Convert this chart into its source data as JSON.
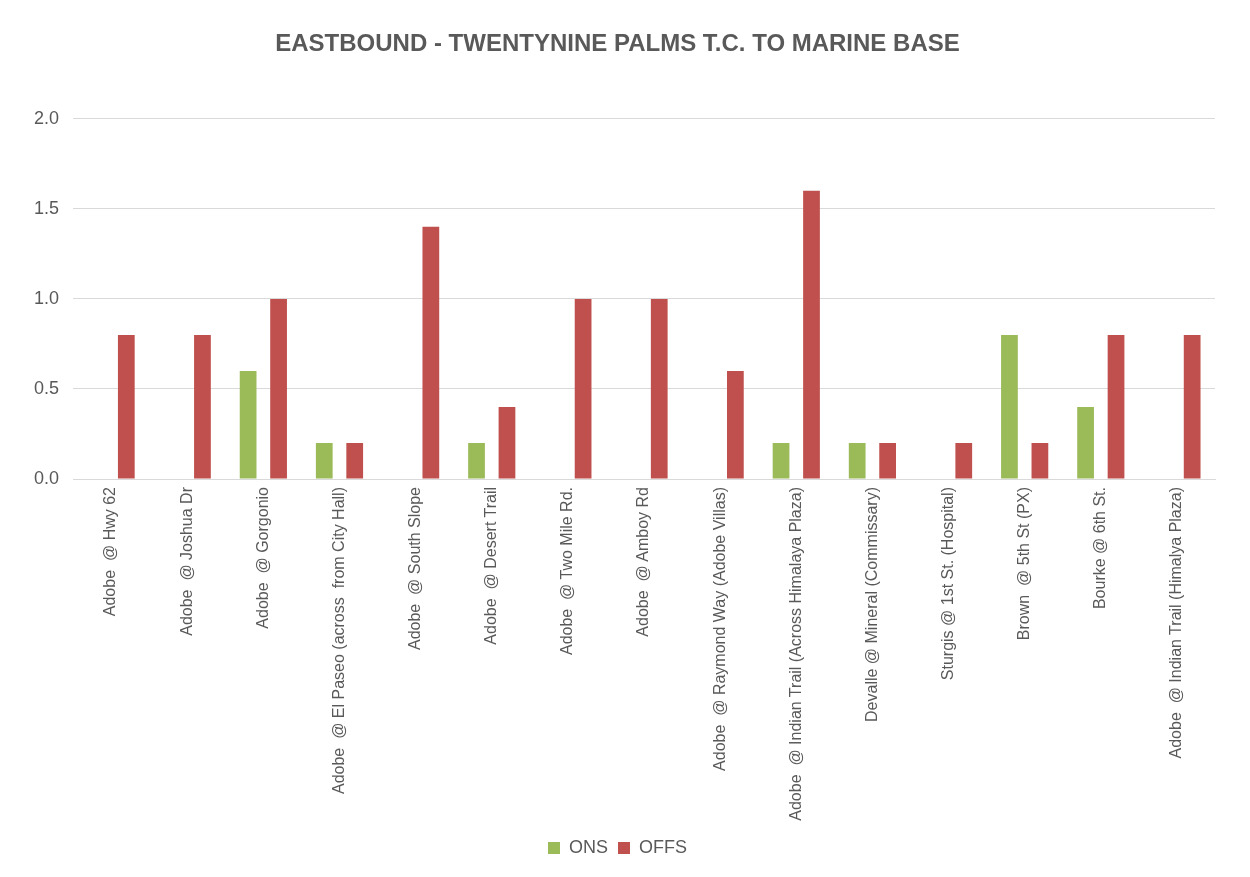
{
  "chart_data": {
    "type": "bar",
    "title": "EASTBOUND - TWENTYNINE PALMS T.C. TO MARINE BASE",
    "categories": [
      "Adobe  @ Hwy 62",
      "Adobe  @ Joshua Dr",
      "Adobe  @ Gorgonio",
      "Adobe  @ El Paseo (across  from City Hall)",
      "Adobe  @ South Slope",
      "Adobe  @ Desert Trail",
      "Adobe  @ Two Mile Rd.",
      "Adobe  @ Amboy Rd",
      "Adobe  @ Raymond Way (Adobe Villas)",
      "Adobe  @ Indian Trail (Across Himalaya Plaza)",
      "Devalle @ Mineral (Commissary)",
      "Sturgis @ 1st St. (Hospital)",
      "Brown  @ 5th St (PX)",
      "Bourke @ 6th St.",
      "Adobe  @ Indian Trail (Himalya Plaza)"
    ],
    "series": [
      {
        "name": "ONS",
        "color": "#9bbb59",
        "values": [
          0,
          0,
          0.6,
          0.2,
          0,
          0.2,
          0,
          0,
          0,
          0.2,
          0.2,
          0,
          0.8,
          0.4,
          0
        ]
      },
      {
        "name": "OFFS",
        "color": "#c0504d",
        "values": [
          0.8,
          0.8,
          1.0,
          0.2,
          1.4,
          0.4,
          1.0,
          1.0,
          0.6,
          1.6,
          0.2,
          0.2,
          0.2,
          0.8,
          0.8
        ]
      }
    ],
    "ylim": [
      0,
      2
    ],
    "yticks": [
      {
        "value": 0,
        "label": "0.0"
      },
      {
        "value": 0.5,
        "label": "0.5"
      },
      {
        "value": 1,
        "label": "1.0"
      },
      {
        "value": 1.5,
        "label": "1.5"
      },
      {
        "value": 2,
        "label": "2.0"
      }
    ],
    "grid": "y",
    "legend": "bottom"
  }
}
